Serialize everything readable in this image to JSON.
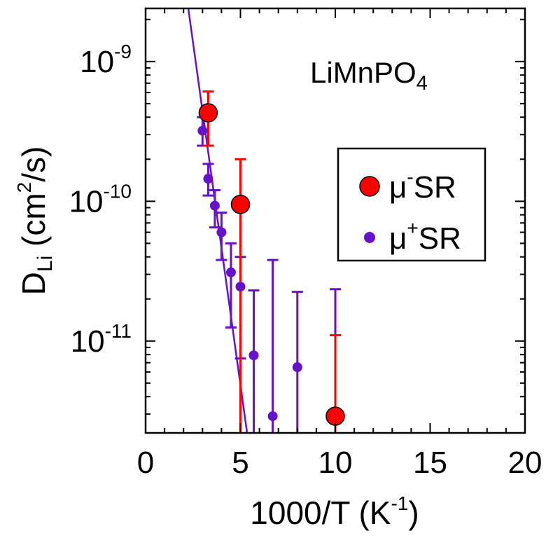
{
  "chart_data": {
    "type": "scatter",
    "xlabel": "1000/T (K",
    "xlabel_sup": "-1",
    "xlabel_tail": ")",
    "ylabel": "D",
    "ylabel_sub": "Li",
    "ylabel_units": " (cm",
    "ylabel_sup": "2",
    "ylabel_tail": "/s)",
    "annotation": {
      "main": "LiMnPO",
      "sub": "4"
    },
    "xlim": [
      0,
      20
    ],
    "ylim": [
      2.2e-12,
      2.4e-09
    ],
    "yscale": "log",
    "x_ticks": [
      0,
      5,
      10,
      15,
      20
    ],
    "x_tick_labels": [
      "0",
      "5",
      "10",
      "15",
      "20"
    ],
    "y_ticks": [
      1e-11,
      1e-10,
      1e-09
    ],
    "y_tick_labels": [
      {
        "base": "10",
        "exp": "-11"
      },
      {
        "base": "10",
        "exp": "-10"
      },
      {
        "base": "10",
        "exp": "-9"
      }
    ],
    "legend_position": "right",
    "series": [
      {
        "name": "μ",
        "name_sup": "-",
        "name_tail": "SR",
        "color": "#ff0000",
        "marker": "large-circle",
        "points": [
          {
            "x": 3.3,
            "y": 4.3e-10,
            "ylo": 2.5e-10,
            "yhi": 6.1e-10
          },
          {
            "x": 5.0,
            "y": 9.5e-11,
            "ylo": 2.2e-12,
            "yhi": 2e-10
          },
          {
            "x": 10.0,
            "y": 2.9e-12,
            "ylo": 2.2e-12,
            "yhi": 1.1e-11
          }
        ]
      },
      {
        "name": "μ",
        "name_sup": "+",
        "name_tail": "SR",
        "color": "#6611cc",
        "marker": "small-circle",
        "points": [
          {
            "x": 3.0,
            "y": 3.2e-10,
            "ylo": 2.5e-10,
            "yhi": 4e-10
          },
          {
            "x": 3.3,
            "y": 1.45e-10,
            "ylo": 1.1e-10,
            "yhi": 1.85e-10
          },
          {
            "x": 3.65,
            "y": 9.3e-11,
            "ylo": 6.5e-11,
            "yhi": 1.2e-10
          },
          {
            "x": 4.0,
            "y": 6e-11,
            "ylo": 3.8e-11,
            "yhi": 8.3e-11
          },
          {
            "x": 4.5,
            "y": 3.1e-11,
            "ylo": 1.25e-11,
            "yhi": 5e-11
          },
          {
            "x": 5.0,
            "y": 2.45e-11,
            "ylo": 7.5e-12,
            "yhi": 4e-11
          },
          {
            "x": 5.7,
            "y": 7.9e-12,
            "ylo": 2.2e-12,
            "yhi": 2.3e-11
          },
          {
            "x": 6.7,
            "y": 2.9e-12,
            "ylo": 2.2e-12,
            "yhi": 3.8e-11
          },
          {
            "x": 8.0,
            "y": 6.5e-12,
            "ylo": 2.2e-12,
            "yhi": 2.25e-11
          },
          {
            "x": 10.0,
            "y": 2.9e-12,
            "ylo": 2.2e-12,
            "yhi": 2.35e-11
          }
        ]
      }
    ],
    "fit_line": {
      "color": "#6611cc",
      "points": [
        {
          "x": 2.25,
          "y": 2.4e-09
        },
        {
          "x": 5.35,
          "y": 2.2e-12
        }
      ]
    }
  }
}
